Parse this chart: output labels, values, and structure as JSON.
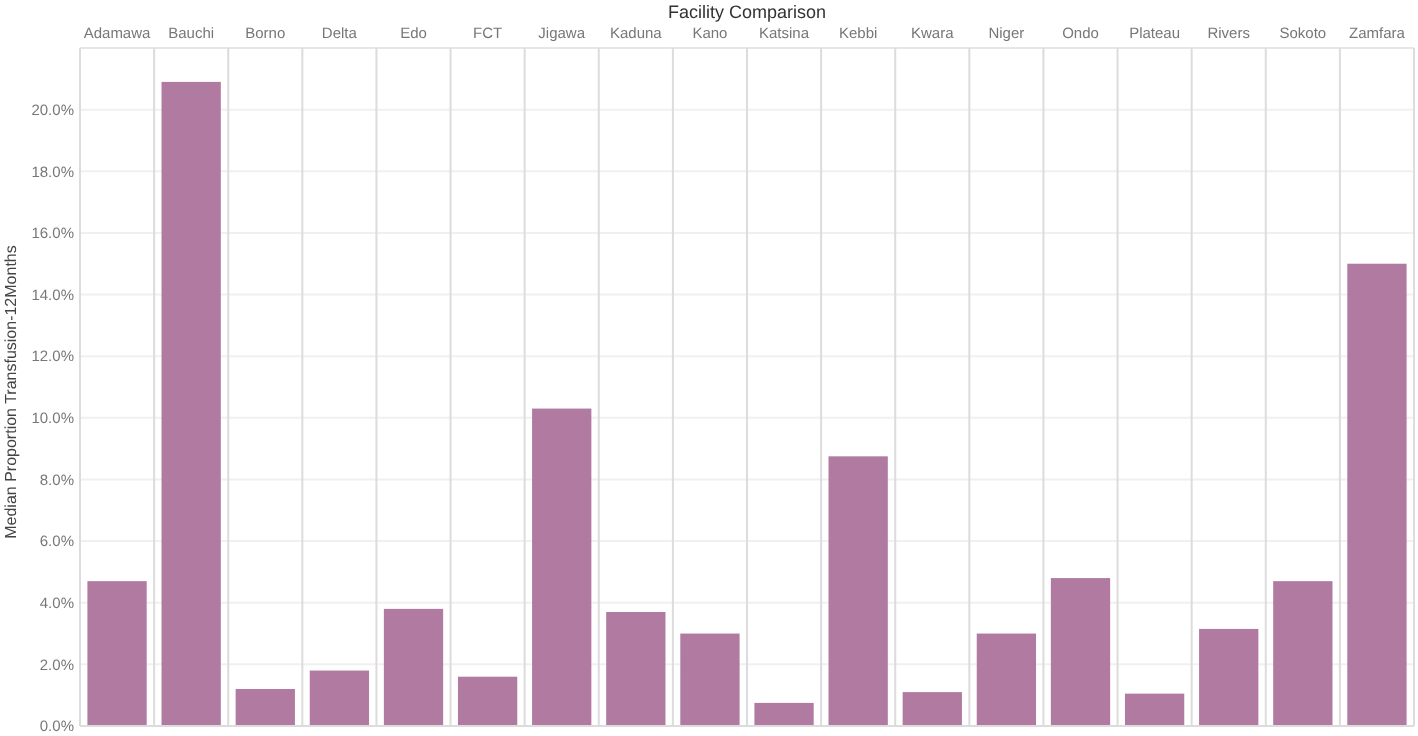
{
  "chart_data": {
    "type": "bar",
    "title": "Facility Comparison",
    "ylabel": "Median Proportion Transfusion-12Months",
    "categories": [
      "Adamawa",
      "Bauchi",
      "Borno",
      "Delta",
      "Edo",
      "FCT",
      "Jigawa",
      "Kaduna",
      "Kano",
      "Katsina",
      "Kebbi",
      "Kwara",
      "Niger",
      "Ondo",
      "Plateau",
      "Rivers",
      "Sokoto",
      "Zamfara"
    ],
    "values": [
      4.7,
      20.9,
      1.2,
      1.8,
      3.8,
      1.6,
      10.3,
      3.7,
      3.0,
      0.75,
      8.75,
      1.1,
      3.0,
      4.8,
      1.05,
      3.15,
      4.7,
      15.0
    ],
    "color": "#b07aa1",
    "ylim": [
      0,
      22
    ],
    "yticks": [
      {
        "value": 0,
        "label": "0.0%"
      },
      {
        "value": 2,
        "label": "2.0%"
      },
      {
        "value": 4,
        "label": "4.0%"
      },
      {
        "value": 6,
        "label": "6.0%"
      },
      {
        "value": 8,
        "label": "8.0%"
      },
      {
        "value": 10,
        "label": "10.0%"
      },
      {
        "value": 12,
        "label": "12.0%"
      },
      {
        "value": 14,
        "label": "14.0%"
      },
      {
        "value": 16,
        "label": "16.0%"
      },
      {
        "value": 18,
        "label": "18.0%"
      },
      {
        "value": 20,
        "label": "20.0%"
      }
    ],
    "grid": "y"
  }
}
